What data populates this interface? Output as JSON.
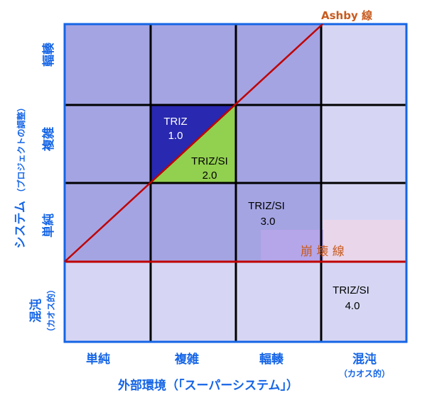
{
  "colors": {
    "cell_dark": "#a4a4e3",
    "cell_light": "#d6d6f4",
    "triz1": "#2828b0",
    "triz_si2": "#92d050",
    "border": "#1565e6",
    "grid": "#000000",
    "red_line": "#c00000",
    "label_blue": "#1565e6",
    "label_orange": "#c85a1e",
    "collapse_band": "#f2d6e6",
    "collapse_band_inner": "#b8a6ea"
  },
  "cell_shading": [
    [
      "dark",
      "dark",
      "dark",
      "light"
    ],
    [
      "dark",
      "dark",
      "dark",
      "light"
    ],
    [
      "dark",
      "dark",
      "dark",
      "light"
    ],
    [
      "light",
      "light",
      "light",
      "light"
    ]
  ],
  "x_axis": {
    "ticks": [
      "単純",
      "複雑",
      "輻輳",
      "混沌"
    ],
    "last_tick_sub": "（カオス的）",
    "title": "外部環境（「スーパーシステム」）"
  },
  "y_axis": {
    "ticks_top_to_bottom": [
      "輻輳",
      "複雑",
      "単純",
      "混沌"
    ],
    "last_tick_sub": "（カオス的）",
    "title_main": "システム",
    "title_sub": "（プロジェクトの調整）"
  },
  "regions": {
    "triz1": {
      "line1": "TRIZ",
      "line2": "1.0"
    },
    "triz_si2": {
      "line1": "TRIZ/SI",
      "line2": "2.0"
    },
    "triz_si3": {
      "line1": "TRIZ/SI",
      "line2": "3.0"
    },
    "triz_si4": {
      "line1": "TRIZ/SI",
      "line2": "4.0"
    }
  },
  "lines": {
    "ashby": "Ashby 線",
    "collapse": "崩 壊 線"
  }
}
